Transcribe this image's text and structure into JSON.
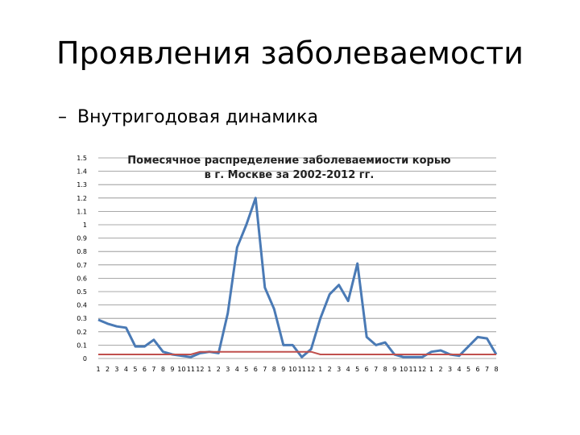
{
  "slide": {
    "title": "Проявления заболеваемости",
    "bullet_dash": "–",
    "bullet": "Внутригодовая динамика"
  },
  "chart_data": {
    "type": "line",
    "title_lines": [
      "Помесячное распределение заболеваемиости корью",
      "в г. Москве за 2002-2012 гг."
    ],
    "xlabel": "",
    "ylabel": "",
    "ylim": [
      0,
      1.5
    ],
    "yticks": [
      "0",
      "0.1",
      "0.2",
      "0.3",
      "0.4",
      "0.5",
      "0.6",
      "0.7",
      "0.8",
      "0.9",
      "1",
      "1.1",
      "1.2",
      "1.3",
      "1.4",
      "1.5"
    ],
    "grid": true,
    "x": [
      "1",
      "2",
      "3",
      "4",
      "5",
      "6",
      "7",
      "8",
      "9",
      "10",
      "11",
      "12",
      "1",
      "2",
      "3",
      "4",
      "5",
      "6",
      "7",
      "8",
      "9",
      "10",
      "11",
      "12",
      "1",
      "2",
      "3",
      "4",
      "5",
      "6",
      "7",
      "8",
      "9",
      "10",
      "11",
      "12",
      "1",
      "2",
      "3",
      "4",
      "5",
      "6",
      "7",
      "8"
    ],
    "series": [
      {
        "color": "#4a7ab5",
        "values": [
          0.29,
          0.26,
          0.24,
          0.23,
          0.09,
          0.09,
          0.14,
          0.05,
          0.03,
          0.02,
          0.01,
          0.04,
          0.05,
          0.04,
          0.34,
          0.83,
          1.0,
          1.2,
          0.53,
          0.37,
          0.1,
          0.1,
          0.01,
          0.07,
          0.3,
          0.48,
          0.55,
          0.43,
          0.71,
          0.16,
          0.1,
          0.12,
          0.03,
          0.01,
          0.01,
          0.01,
          0.05,
          0.06,
          0.03,
          0.02,
          0.09,
          0.16,
          0.15,
          0.03
        ]
      },
      {
        "color": "#c0504d",
        "values": [
          0.03,
          0.03,
          0.03,
          0.03,
          0.03,
          0.03,
          0.03,
          0.03,
          0.03,
          0.03,
          0.03,
          0.05,
          0.05,
          0.05,
          0.05,
          0.05,
          0.05,
          0.05,
          0.05,
          0.05,
          0.05,
          0.05,
          0.05,
          0.05,
          0.03,
          0.03,
          0.03,
          0.03,
          0.03,
          0.03,
          0.03,
          0.03,
          0.03,
          0.03,
          0.03,
          0.03,
          0.03,
          0.03,
          0.03,
          0.03,
          0.03,
          0.03,
          0.03,
          0.03
        ]
      }
    ]
  }
}
